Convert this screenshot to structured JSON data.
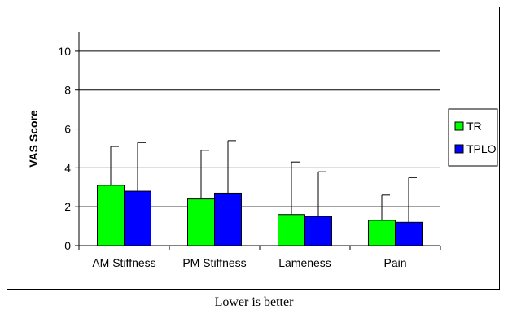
{
  "caption": "Lower is better",
  "chart_data": {
    "type": "bar",
    "title": "",
    "xlabel": "",
    "ylabel": "VAS Score",
    "ylim": [
      0,
      11
    ],
    "yticks": [
      0,
      2,
      4,
      6,
      8,
      10
    ],
    "grid": true,
    "legend_position": "right",
    "categories": [
      "AM Stiffness",
      "PM Stiffness",
      "Lameness",
      "Pain"
    ],
    "series": [
      {
        "name": "TR",
        "color": "#00ff00",
        "values": [
          3.1,
          2.4,
          1.6,
          1.3
        ],
        "error_plus": [
          2.0,
          2.5,
          2.7,
          1.3
        ]
      },
      {
        "name": "TPLO",
        "color": "#0000ff",
        "values": [
          2.8,
          2.7,
          1.5,
          1.2
        ],
        "error_plus": [
          2.5,
          2.7,
          2.3,
          2.3
        ]
      }
    ]
  }
}
